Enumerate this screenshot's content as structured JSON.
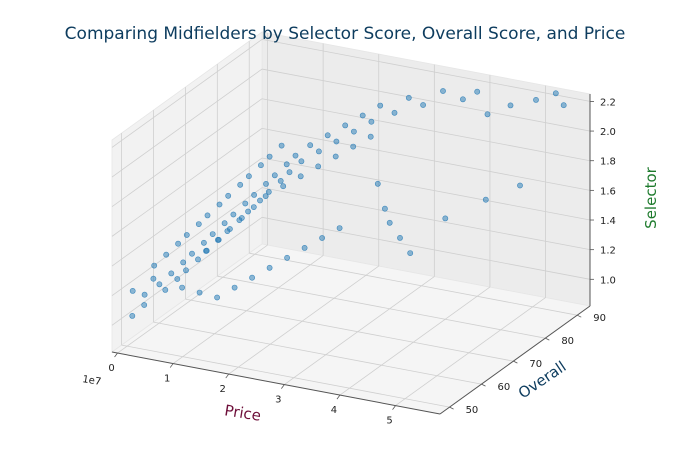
{
  "chart_data": {
    "type": "scatter",
    "projection": "3d",
    "title": "Comparing Midfielders by Selector Score, Overall Score, and Price",
    "xlabel": "Price",
    "ylabel": "Overall",
    "zlabel": "Selector",
    "x_offset_label": "1e7",
    "x_ticks": [
      "0",
      "1",
      "2",
      "3",
      "4",
      "5"
    ],
    "y_ticks": [
      "50",
      "60",
      "70",
      "80",
      "90"
    ],
    "z_ticks": [
      "1.0",
      "1.2",
      "1.4",
      "1.6",
      "1.8",
      "2.0",
      "2.2"
    ],
    "xlim": [
      -0.1,
      5.8
    ],
    "ylim": [
      47,
      94
    ],
    "zlim": [
      0.82,
      2.25
    ],
    "colors": {
      "title": "#0d3c5e",
      "xlabel": "#6e0f3a",
      "ylabel": "#0d3c5e",
      "zlabel": "#1d7a2c",
      "points": "#1f77b4"
    },
    "grid": true,
    "point_alpha": 0.5,
    "notes": "x in units of 1e7 (price); approximately 500 points distributed roughly along the diagonal; representative subset listed",
    "points": [
      [
        0.15,
        49,
        1.05
      ],
      [
        0.1,
        50,
        1.2
      ],
      [
        0.2,
        52,
        1.15
      ],
      [
        0.25,
        51,
        1.1
      ],
      [
        0.3,
        53,
        1.25
      ],
      [
        0.35,
        54,
        1.2
      ],
      [
        0.2,
        55,
        1.3
      ],
      [
        0.4,
        55,
        1.15
      ],
      [
        0.45,
        56,
        1.25
      ],
      [
        0.3,
        57,
        1.35
      ],
      [
        0.5,
        57,
        1.2
      ],
      [
        0.55,
        58,
        1.3
      ],
      [
        0.6,
        58,
        1.25
      ],
      [
        0.4,
        59,
        1.4
      ],
      [
        0.65,
        59,
        1.35
      ],
      [
        0.7,
        60,
        1.3
      ],
      [
        0.5,
        60,
        1.45
      ],
      [
        0.75,
        61,
        1.4
      ],
      [
        0.8,
        61,
        1.35
      ],
      [
        0.6,
        62,
        1.5
      ],
      [
        0.85,
        62,
        1.45
      ],
      [
        0.9,
        63,
        1.4
      ],
      [
        0.7,
        63,
        1.55
      ],
      [
        0.95,
        64,
        1.5
      ],
      [
        1.0,
        64,
        1.45
      ],
      [
        0.8,
        65,
        1.6
      ],
      [
        1.05,
        65,
        1.55
      ],
      [
        1.1,
        66,
        1.5
      ],
      [
        0.9,
        66,
        1.65
      ],
      [
        1.15,
        67,
        1.6
      ],
      [
        1.2,
        67,
        1.55
      ],
      [
        1.0,
        68,
        1.7
      ],
      [
        1.25,
        68,
        1.65
      ],
      [
        1.3,
        69,
        1.6
      ],
      [
        1.1,
        69,
        1.75
      ],
      [
        1.35,
        70,
        1.7
      ],
      [
        1.4,
        70,
        1.65
      ],
      [
        1.2,
        71,
        1.8
      ],
      [
        1.45,
        71,
        1.75
      ],
      [
        1.5,
        72,
        1.7
      ],
      [
        1.3,
        72,
        1.85
      ],
      [
        1.55,
        73,
        1.8
      ],
      [
        1.6,
        73,
        1.75
      ],
      [
        1.4,
        74,
        1.9
      ],
      [
        1.65,
        74,
        1.85
      ],
      [
        1.7,
        75,
        1.8
      ],
      [
        1.8,
        76,
        1.9
      ],
      [
        1.9,
        77,
        1.85
      ],
      [
        2.0,
        78,
        1.95
      ],
      [
        2.1,
        79,
        1.9
      ],
      [
        2.2,
        80,
        2.0
      ],
      [
        2.3,
        81,
        1.95
      ],
      [
        2.4,
        82,
        2.05
      ],
      [
        2.5,
        83,
        2.0
      ],
      [
        2.6,
        84,
        2.1
      ],
      [
        2.8,
        85,
        2.05
      ],
      [
        3.0,
        86,
        2.15
      ],
      [
        3.2,
        87,
        2.1
      ],
      [
        3.5,
        88,
        2.2
      ],
      [
        3.8,
        89,
        2.15
      ],
      [
        4.0,
        90,
        2.2
      ],
      [
        4.3,
        88,
        2.1
      ],
      [
        4.6,
        90,
        2.15
      ],
      [
        5.0,
        91,
        2.2
      ],
      [
        5.3,
        92,
        2.25
      ],
      [
        5.5,
        91,
        2.2
      ],
      [
        0.5,
        66,
        1.25
      ],
      [
        0.6,
        68,
        1.3
      ],
      [
        0.7,
        70,
        1.35
      ],
      [
        0.8,
        72,
        1.4
      ],
      [
        0.9,
        74,
        1.45
      ],
      [
        1.0,
        76,
        1.5
      ],
      [
        1.2,
        78,
        1.55
      ],
      [
        1.4,
        80,
        1.6
      ],
      [
        1.6,
        82,
        1.65
      ],
      [
        1.8,
        84,
        1.7
      ],
      [
        2.0,
        86,
        1.75
      ],
      [
        2.2,
        88,
        1.8
      ],
      [
        2.5,
        85,
        1.55
      ],
      [
        2.8,
        82,
        1.45
      ],
      [
        3.0,
        80,
        1.4
      ],
      [
        3.3,
        78,
        1.35
      ],
      [
        3.6,
        76,
        1.3
      ],
      [
        4.0,
        80,
        1.5
      ],
      [
        4.5,
        84,
        1.6
      ],
      [
        5.0,
        86,
        1.7
      ],
      [
        0.3,
        62,
        1.05
      ],
      [
        0.5,
        64,
        1.0
      ],
      [
        0.7,
        66,
        0.95
      ],
      [
        0.9,
        68,
        1.0
      ],
      [
        1.1,
        70,
        1.05
      ],
      [
        1.3,
        72,
        1.1
      ],
      [
        1.5,
        74,
        1.15
      ],
      [
        1.7,
        76,
        1.2
      ],
      [
        1.9,
        78,
        1.25
      ],
      [
        2.1,
        80,
        1.3
      ]
    ]
  }
}
